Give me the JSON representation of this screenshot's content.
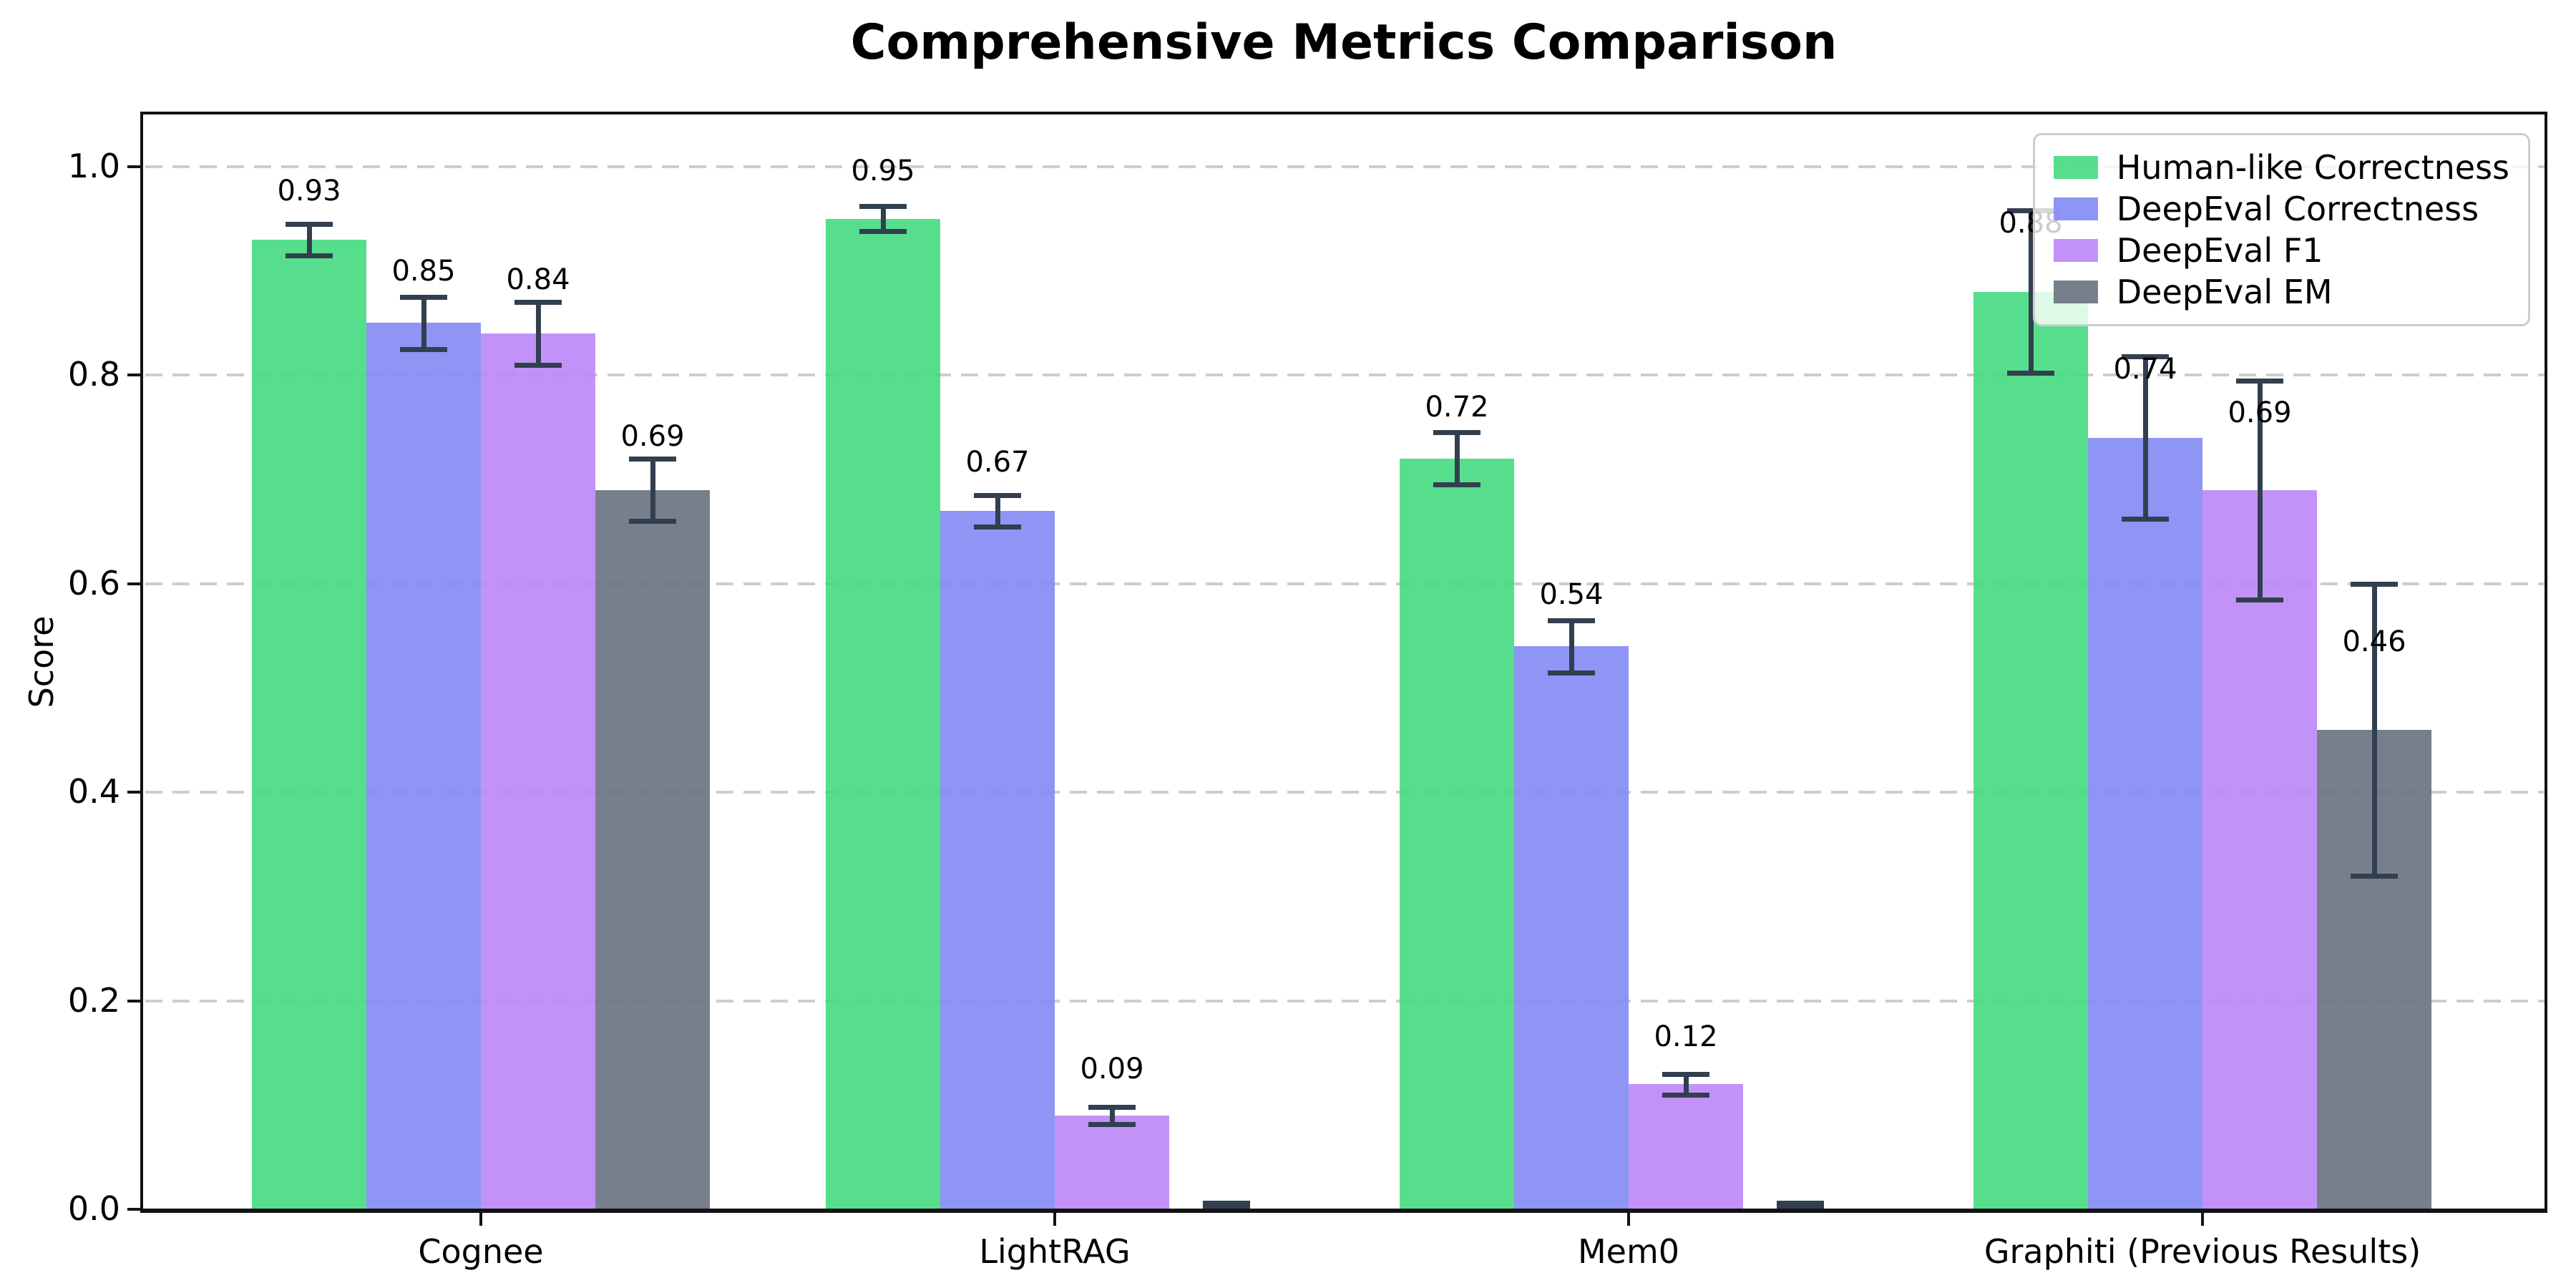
{
  "title": "Comprehensive Metrics Comparison",
  "ylabel": "Score",
  "chart_data": {
    "type": "bar",
    "title": "Comprehensive Metrics Comparison",
    "xlabel": "",
    "ylabel": "Score",
    "categories": [
      "Cognee",
      "LightRAG",
      "Mem0",
      "Graphiti (Previous Results)"
    ],
    "series": [
      {
        "name": "Human-like Correctness",
        "color": "#45da81",
        "values": [
          0.93,
          0.95,
          0.72,
          0.88
        ],
        "errors": [
          0.015,
          0.012,
          0.025,
          0.078
        ],
        "labels": [
          "0.93",
          "0.95",
          "0.72",
          "0.88"
        ]
      },
      {
        "name": "DeepEval Correctness",
        "color": "#8289f3",
        "values": [
          0.85,
          0.67,
          0.54,
          0.74
        ],
        "errors": [
          0.025,
          0.015,
          0.025,
          0.078
        ],
        "labels": [
          "0.85",
          "0.67",
          "0.54",
          "0.74"
        ]
      },
      {
        "name": "DeepEval F1",
        "color": "#bd86f8",
        "values": [
          0.84,
          0.09,
          0.12,
          0.69
        ],
        "errors": [
          0.03,
          0.008,
          0.01,
          0.105
        ],
        "labels": [
          "0.84",
          "0.09",
          "0.12",
          "0.69"
        ]
      },
      {
        "name": "DeepEval EM",
        "color": "#68717f",
        "values": [
          0.69,
          0.0,
          0.0,
          0.46
        ],
        "errors": [
          0.03,
          0.006,
          0.006,
          0.14
        ],
        "labels": [
          "0.69",
          "",
          "",
          "0.46"
        ]
      }
    ],
    "ylim": [
      0,
      1.05
    ],
    "yticks": [
      {
        "value": 0.0,
        "label": "0.0"
      },
      {
        "value": 0.2,
        "label": "0.2"
      },
      {
        "value": 0.4,
        "label": "0.4"
      },
      {
        "value": 0.6,
        "label": "0.6"
      },
      {
        "value": 0.8,
        "label": "0.8"
      },
      {
        "value": 1.0,
        "label": "1.0"
      }
    ],
    "grid": "horizontal-dashed",
    "legend_position": "upper-right"
  },
  "colors": {
    "error_bar": "#323f4f",
    "grid": "#cdcdcd",
    "spine": "#131313",
    "background": "#ffffff"
  }
}
